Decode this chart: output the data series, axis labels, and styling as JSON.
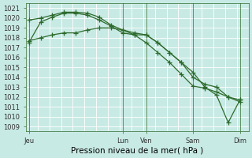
{
  "xlabel": "Pression niveau de la mer( hPa )",
  "ylim": [
    1008.5,
    1021.5
  ],
  "yticks": [
    1009,
    1010,
    1011,
    1012,
    1013,
    1014,
    1015,
    1016,
    1017,
    1018,
    1019,
    1020,
    1021
  ],
  "bg_color": "#c8eae4",
  "grid_color": "#ffffff",
  "line_color": "#2d6b2d",
  "xtick_labels": [
    "Jeu",
    "Lun",
    "Ven",
    "Sam",
    "Dim"
  ],
  "xtick_positions": [
    0,
    16,
    20,
    28,
    36
  ],
  "vline_positions": [
    0,
    16,
    20,
    28,
    36
  ],
  "series1_x": [
    0,
    2,
    4,
    6,
    8,
    10,
    12,
    14,
    16,
    18,
    20,
    22,
    24,
    26,
    28,
    30,
    32,
    34,
    36
  ],
  "series1_y": [
    1017.5,
    1019.6,
    1020.1,
    1020.5,
    1020.5,
    1020.3,
    1019.8,
    1019.2,
    1018.5,
    1018.3,
    1018.3,
    1017.5,
    1016.5,
    1015.5,
    1014.5,
    1013.0,
    1012.2,
    1009.4,
    1011.7
  ],
  "series2_x": [
    0,
    2,
    4,
    6,
    8,
    10,
    12,
    14,
    16,
    18,
    20,
    22,
    24,
    26,
    28,
    30,
    32,
    34,
    36
  ],
  "series2_y": [
    1019.8,
    1020.0,
    1020.3,
    1020.6,
    1020.6,
    1020.5,
    1020.1,
    1019.3,
    1018.8,
    1018.5,
    1018.3,
    1017.5,
    1016.5,
    1015.5,
    1014.0,
    1013.3,
    1013.0,
    1012.0,
    1011.7
  ],
  "series3_x": [
    0,
    2,
    4,
    6,
    8,
    10,
    12,
    14,
    16,
    18,
    20,
    22,
    24,
    26,
    28,
    30,
    32,
    34,
    36
  ],
  "series3_y": [
    1017.7,
    1018.0,
    1018.3,
    1018.5,
    1018.5,
    1018.8,
    1019.0,
    1019.0,
    1018.8,
    1018.3,
    1017.5,
    1016.5,
    1015.5,
    1014.3,
    1013.1,
    1012.9,
    1012.5,
    1012.0,
    1011.5
  ],
  "xlim": [
    -0.5,
    37.5
  ],
  "marker": "+",
  "markersize": 4,
  "linewidth": 0.9,
  "fontsize": 6,
  "xlabel_fontsize": 7.5
}
